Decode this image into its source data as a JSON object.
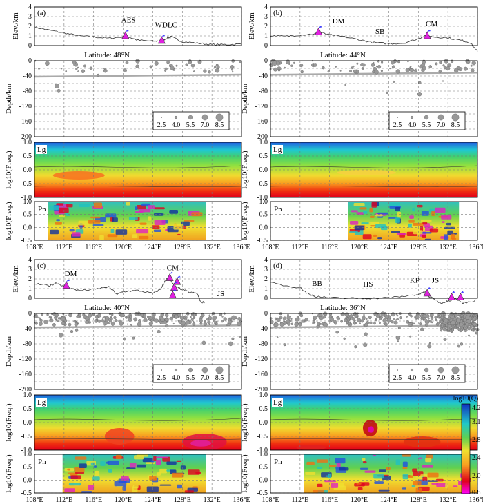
{
  "colorbar": {
    "title": "log10(Q)",
    "ticks": [
      "4.2",
      "3.1",
      "2.8",
      "2.4",
      "2.0",
      "0.8"
    ]
  },
  "axes": {
    "elev_label": "Elev./km",
    "elev_ticks": [
      "4",
      "3",
      "2",
      "1",
      "0"
    ],
    "depth_label": "Depth/km",
    "depth_ticks": [
      "0",
      "-40",
      "-80",
      "-120",
      "-160",
      "-200"
    ],
    "freq_label": "log10(Freq.)",
    "lg_ticks": [
      "1.0",
      "0.5",
      "0.0",
      "-0.5",
      "-1.0"
    ],
    "pn_ticks": [
      "1.0",
      "0.5",
      "0.0",
      "-0.5"
    ],
    "lon_ticks": [
      "108°E",
      "112°E",
      "116°E",
      "120°E",
      "124°E",
      "128°E",
      "132°E",
      "136°E"
    ],
    "lon_values": [
      108,
      112,
      116,
      120,
      124,
      128,
      132,
      136
    ],
    "legend_sizes": [
      "2.5",
      "4.0",
      "5.5",
      "7.0",
      "8.5"
    ],
    "lg_text": "Lg",
    "pn_text": "Pn"
  },
  "panels": [
    {
      "id": "a",
      "tag": "(a)",
      "latitude": "Latitude: 48°N",
      "labels": [
        {
          "text": "AES",
          "lon": 120.7,
          "elev": 2.4
        },
        {
          "text": "WDLC",
          "lon": 125.8,
          "elev": 1.9
        }
      ],
      "volcanoes": [
        {
          "lon": 120.3,
          "elev": 1.0
        },
        {
          "lon": 125.2,
          "elev": 0.5
        }
      ],
      "pn_range": [
        109.8,
        131.2
      ]
    },
    {
      "id": "b",
      "tag": "(b)",
      "latitude": "Latitude: 44°N",
      "labels": [
        {
          "text": "DM",
          "lon": 117.2,
          "elev": 2.3
        },
        {
          "text": "SB",
          "lon": 122.8,
          "elev": 1.2
        },
        {
          "text": "CM",
          "lon": 129.8,
          "elev": 2.0
        }
      ],
      "volcanoes": [
        {
          "lon": 114.5,
          "elev": 1.4
        },
        {
          "lon": 129.2,
          "elev": 1.0
        }
      ],
      "pn_range": [
        118.5,
        133.5
      ]
    },
    {
      "id": "c",
      "tag": "(c)",
      "latitude": "Latitude: 40°N",
      "labels": [
        {
          "text": "DM",
          "lon": 112.9,
          "elev": 2.3
        },
        {
          "text": "CM",
          "lon": 126.7,
          "elev": 2.9
        },
        {
          "text": "JS",
          "lon": 133.2,
          "elev": 0.2
        }
      ],
      "volcanoes": [
        {
          "lon": 112.3,
          "elev": 1.3
        },
        {
          "lon": 126.3,
          "elev": 2.1
        },
        {
          "lon": 127.3,
          "elev": 1.7
        },
        {
          "lon": 126.9,
          "elev": 1.1
        },
        {
          "lon": 126.7,
          "elev": 0.3
        }
      ],
      "pn_range": [
        111.8,
        131.2
      ]
    },
    {
      "id": "d",
      "tag": "(d)",
      "latitude": "Latitude: 36°N",
      "labels": [
        {
          "text": "BB",
          "lon": 114.3,
          "elev": 1.3
        },
        {
          "text": "HS",
          "lon": 121.2,
          "elev": 1.2
        },
        {
          "text": "KP",
          "lon": 127.5,
          "elev": 1.6
        },
        {
          "text": "JS",
          "lon": 130.3,
          "elev": 1.6
        }
      ],
      "volcanoes": [
        {
          "lon": 129.2,
          "elev": 0.5
        },
        {
          "lon": 132.5,
          "elev": 0.1
        },
        {
          "lon": 133.7,
          "elev": 0.1
        }
      ],
      "pn_range": [
        112.5,
        136.0
      ]
    }
  ],
  "chart_data": {
    "type": "heatmap",
    "x_unit": "longitude (°E)",
    "xlim": [
      108,
      136
    ],
    "elev_ylim": [
      0,
      4
    ],
    "depth_ylim": [
      -200,
      0
    ],
    "freq_lg_ylim": [
      -1.0,
      1.0
    ],
    "freq_pn_ylim": [
      -0.5,
      1.0
    ],
    "q_range": [
      0.8,
      4.2
    ],
    "profiles": [
      {
        "panel": "a",
        "latitude": 48,
        "topography": [
          [
            108,
            1.9
          ],
          [
            110,
            1.6
          ],
          [
            112,
            1.3
          ],
          [
            114,
            1.0
          ],
          [
            116,
            0.9
          ],
          [
            118,
            0.75
          ],
          [
            120,
            0.9
          ],
          [
            120.3,
            1.0
          ],
          [
            122,
            0.55
          ],
          [
            124,
            0.45
          ],
          [
            125.2,
            0.5
          ],
          [
            126,
            0.8
          ],
          [
            126.5,
            0.9
          ],
          [
            128,
            0.4
          ],
          [
            130,
            0.25
          ],
          [
            132,
            0.1
          ],
          [
            134,
            0.1
          ],
          [
            136,
            0.15
          ]
        ],
        "moho": -40
      },
      {
        "panel": "b",
        "latitude": 44,
        "topography": [
          [
            108,
            1.0
          ],
          [
            110,
            0.95
          ],
          [
            112,
            1.1
          ],
          [
            114,
            1.2
          ],
          [
            114.5,
            1.4
          ],
          [
            116,
            1.1
          ],
          [
            118,
            0.9
          ],
          [
            120,
            0.6
          ],
          [
            122,
            0.3
          ],
          [
            124,
            0.2
          ],
          [
            126,
            0.25
          ],
          [
            128,
            0.7
          ],
          [
            129,
            1.1
          ],
          [
            130,
            0.9
          ],
          [
            132,
            0.8
          ],
          [
            134,
            0.5
          ],
          [
            135,
            0.3
          ],
          [
            136,
            -0.6
          ]
        ],
        "moho": -35
      },
      {
        "panel": "c",
        "latitude": 40,
        "topography": [
          [
            108,
            1.5
          ],
          [
            110,
            1.3
          ],
          [
            111,
            1.6
          ],
          [
            112,
            1.2
          ],
          [
            113,
            1.0
          ],
          [
            114,
            0.8
          ],
          [
            116,
            0.9
          ],
          [
            118,
            1.2
          ],
          [
            119.2,
            0.4
          ],
          [
            120,
            0.7
          ],
          [
            122,
            0.8
          ],
          [
            124,
            0.5
          ],
          [
            125,
            0.9
          ],
          [
            126,
            2.2
          ],
          [
            127,
            1.2
          ],
          [
            128,
            0.9
          ],
          [
            129,
            0.6
          ],
          [
            130,
            0.5
          ],
          [
            130.5,
            -0.4
          ],
          [
            131,
            -0.4
          ]
        ],
        "moho": -35
      },
      {
        "panel": "d",
        "latitude": 36,
        "topography": [
          [
            108,
            1.6
          ],
          [
            110,
            1.3
          ],
          [
            112,
            1.1
          ],
          [
            113,
            0.5
          ],
          [
            114,
            0.2
          ],
          [
            116,
            0.05
          ],
          [
            118,
            0.0
          ],
          [
            120,
            0.0
          ],
          [
            122,
            0.0
          ],
          [
            124,
            0.05
          ],
          [
            126,
            0.2
          ],
          [
            128,
            0.4
          ],
          [
            129,
            0.7
          ],
          [
            129.5,
            0.1
          ],
          [
            130,
            0.0
          ],
          [
            131,
            -0.5
          ],
          [
            132,
            -0.3
          ],
          [
            133,
            0.0
          ],
          [
            134,
            -0.5
          ],
          [
            136,
            -0.2
          ]
        ],
        "moho": -35
      }
    ]
  }
}
